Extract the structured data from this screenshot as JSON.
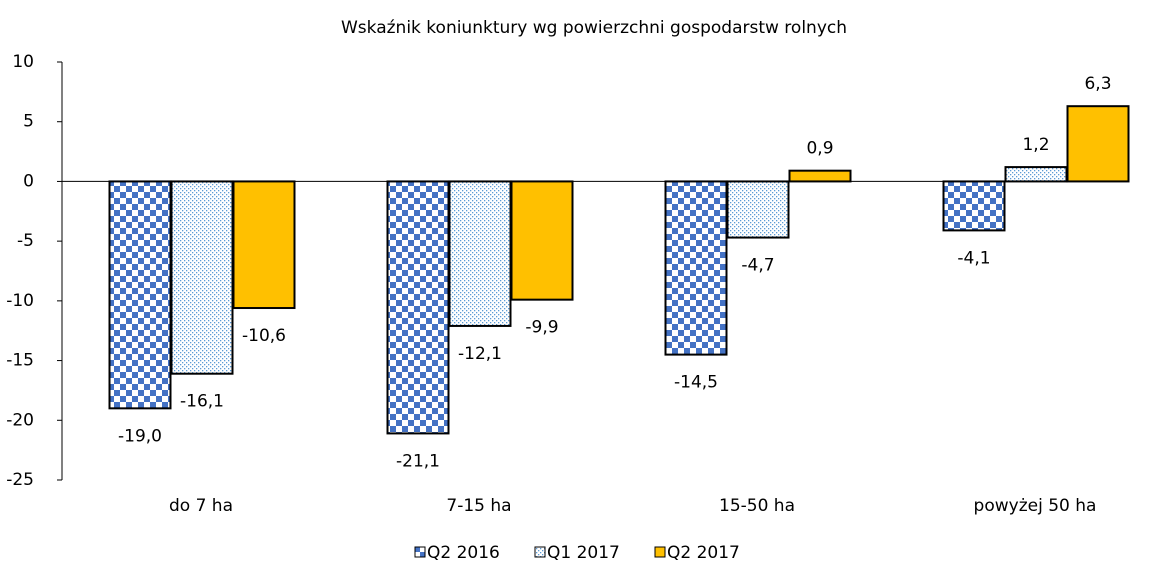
{
  "chart_data": {
    "type": "bar",
    "title": "Wskaźnik koniunktury wg powierzchni gospodarstw rolnych",
    "categories": [
      "do 7 ha",
      "7-15 ha",
      "15-50 ha",
      "powyżej 50 ha"
    ],
    "series": [
      {
        "name": "Q2 2016",
        "color": "#4472c4",
        "pattern": "checker",
        "values": [
          -19.0,
          -21.1,
          -14.5,
          -4.1
        ],
        "value_labels": [
          "-19,0",
          "-21,1",
          "-14,5",
          "-4,1"
        ]
      },
      {
        "name": "Q1 2017",
        "color": "#5b9bd5",
        "pattern": "dots",
        "values": [
          -16.1,
          -12.1,
          -4.7,
          1.2
        ],
        "value_labels": [
          "-16,1",
          "-12,1",
          "-4,7",
          "1,2"
        ]
      },
      {
        "name": "Q2 2017",
        "color": "#ffc000",
        "pattern": "solid",
        "values": [
          -10.6,
          -9.9,
          0.9,
          6.3
        ],
        "value_labels": [
          "-10,6",
          "-9,9",
          "0,9",
          "6,3"
        ]
      }
    ],
    "ylim": [
      -25,
      10
    ],
    "yticks": [
      10,
      5,
      0,
      -5,
      -10,
      -15,
      -20,
      -25
    ],
    "legend": "bottom"
  }
}
